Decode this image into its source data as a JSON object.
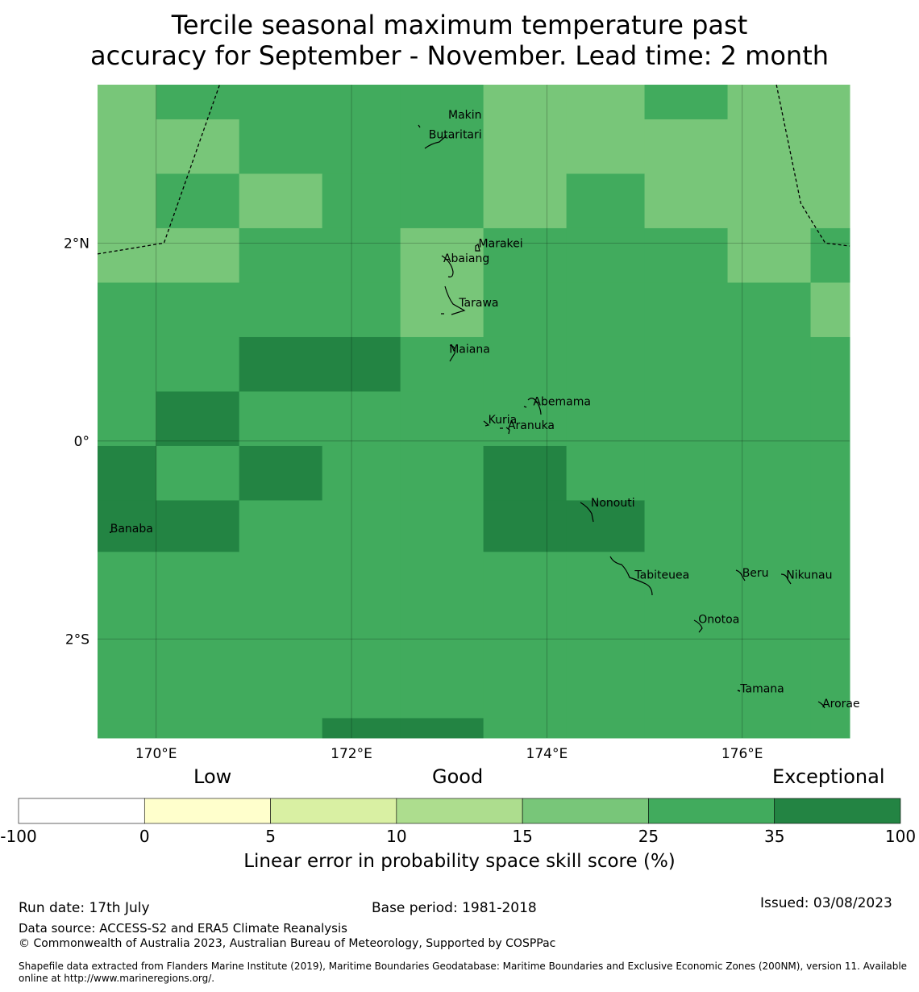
{
  "title": {
    "line1": "Tercile seasonal maximum temperature past",
    "line2": "accuracy for September - November. Lead time: 2 month"
  },
  "map": {
    "lon_range": [
      169.4,
      177.1
    ],
    "lat_range": [
      -3.0,
      3.6
    ],
    "x_ticks": [
      {
        "value": 170,
        "label": "170°E"
      },
      {
        "value": 172,
        "label": "172°E"
      },
      {
        "value": 174,
        "label": "174°E"
      },
      {
        "value": 176,
        "label": "176°E"
      }
    ],
    "y_ticks": [
      {
        "value": 2,
        "label": "2°N"
      },
      {
        "value": 0,
        "label": "0°"
      },
      {
        "value": -2,
        "label": "2°S"
      }
    ],
    "grid": true,
    "places": [
      {
        "name": "Makin",
        "lon": 172.99,
        "lat": 3.3
      },
      {
        "name": "Butaritari",
        "lon": 172.79,
        "lat": 3.1
      },
      {
        "name": "Marakei",
        "lon": 173.3,
        "lat": 2.0
      },
      {
        "name": "Abaiang",
        "lon": 172.94,
        "lat": 1.85
      },
      {
        "name": "Tarawa",
        "lon": 173.1,
        "lat": 1.4
      },
      {
        "name": "Maiana",
        "lon": 173.0,
        "lat": 0.93
      },
      {
        "name": "Abemama",
        "lon": 173.86,
        "lat": 0.4
      },
      {
        "name": "Kuria",
        "lon": 173.4,
        "lat": 0.22
      },
      {
        "name": "Aranuka",
        "lon": 173.6,
        "lat": 0.16
      },
      {
        "name": "Nonouti",
        "lon": 174.45,
        "lat": -0.62
      },
      {
        "name": "Banaba",
        "lon": 169.53,
        "lat": -0.88
      },
      {
        "name": "Tabiteuea",
        "lon": 174.9,
        "lat": -1.35
      },
      {
        "name": "Beru",
        "lon": 176.0,
        "lat": -1.33
      },
      {
        "name": "Nikunau",
        "lon": 176.45,
        "lat": -1.35
      },
      {
        "name": "Onotoa",
        "lon": 175.55,
        "lat": -1.8
      },
      {
        "name": "Tamana",
        "lon": 175.98,
        "lat": -2.5
      },
      {
        "name": "Arorae",
        "lon": 176.82,
        "lat": -2.65
      }
    ],
    "eez_boundaries": [
      [
        [
          169.4,
          1.89
        ],
        [
          170.08,
          2.0
        ],
        [
          170.65,
          3.6
        ]
      ],
      [
        [
          176.35,
          3.6
        ],
        [
          176.6,
          2.4
        ],
        [
          176.85,
          2.0
        ],
        [
          177.1,
          1.97
        ]
      ]
    ]
  },
  "chart_data": {
    "type": "heatmap",
    "value_label": "Linear error in probability space skill score (%)",
    "columns": [
      169.4,
      170.0,
      170.85,
      171.7,
      172.5,
      173.35,
      174.2,
      175.0,
      175.85,
      176.7,
      177.1
    ],
    "rows": [
      3.6,
      3.25,
      2.7,
      2.15,
      1.6,
      1.05,
      0.5,
      -0.05,
      -0.6,
      -1.12,
      -2.8,
      -3.0
    ],
    "category_colors": {
      "15-25": "#78c679",
      "25-35": "#41ab5d",
      "35-100": "#238443"
    },
    "categories": [
      [
        "15-25",
        "25-35",
        "25-35",
        "25-35",
        "25-35",
        "15-25",
        "15-25",
        "25-35",
        "15-25",
        "15-25"
      ],
      [
        "15-25",
        "15-25",
        "25-35",
        "25-35",
        "25-35",
        "15-25",
        "15-25",
        "15-25",
        "15-25",
        "15-25"
      ],
      [
        "15-25",
        "25-35",
        "15-25",
        "25-35",
        "25-35",
        "15-25",
        "25-35",
        "15-25",
        "15-25",
        "15-25"
      ],
      [
        "15-25",
        "15-25",
        "25-35",
        "25-35",
        "15-25",
        "25-35",
        "25-35",
        "25-35",
        "15-25",
        "25-35"
      ],
      [
        "25-35",
        "25-35",
        "25-35",
        "25-35",
        "15-25",
        "25-35",
        "25-35",
        "25-35",
        "25-35",
        "15-25"
      ],
      [
        "25-35",
        "25-35",
        "35-100",
        "35-100",
        "25-35",
        "25-35",
        "25-35",
        "25-35",
        "25-35",
        "25-35"
      ],
      [
        "25-35",
        "35-100",
        "25-35",
        "25-35",
        "25-35",
        "25-35",
        "25-35",
        "25-35",
        "25-35",
        "25-35"
      ],
      [
        "35-100",
        "25-35",
        "35-100",
        "25-35",
        "25-35",
        "35-100",
        "25-35",
        "25-35",
        "25-35",
        "25-35"
      ],
      [
        "35-100",
        "35-100",
        "25-35",
        "25-35",
        "25-35",
        "35-100",
        "35-100",
        "25-35",
        "25-35",
        "25-35"
      ],
      [
        "25-35",
        "25-35",
        "25-35",
        "25-35",
        "25-35",
        "25-35",
        "25-35",
        "25-35",
        "25-35",
        "25-35"
      ],
      [
        "25-35",
        "25-35",
        "25-35",
        "35-100",
        "35-100",
        "25-35",
        "25-35",
        "25-35",
        "25-35",
        "25-35"
      ]
    ]
  },
  "colorbar": {
    "bins": [
      {
        "from": -100,
        "to": 0,
        "color": "#ffffff"
      },
      {
        "from": 0,
        "to": 5,
        "color": "#ffffcc"
      },
      {
        "from": 5,
        "to": 10,
        "color": "#d9f0a3"
      },
      {
        "from": 10,
        "to": 15,
        "color": "#addd8e"
      },
      {
        "from": 15,
        "to": 25,
        "color": "#78c679"
      },
      {
        "from": 25,
        "to": 35,
        "color": "#41ab5d"
      },
      {
        "from": 35,
        "to": 100,
        "color": "#238443"
      }
    ],
    "tick_labels": [
      "-100",
      "0",
      "5",
      "10",
      "15",
      "25",
      "35",
      "100"
    ],
    "category_words": {
      "low": "Low",
      "good": "Good",
      "exceptional": "Exceptional"
    },
    "label": "Linear error in probability space skill score (%)"
  },
  "footer": {
    "run_date": "Run date: 17th July",
    "base_period": "Base period: 1981-2018",
    "issued": "Issued: 03/08/2023",
    "data_source": "Data source: ACCESS-S2 and ERA5 Climate Reanalysis",
    "copyright": "© Commonwealth of Australia 2023, Australian Bureau of Meteorology, Supported by COSPPac",
    "shapefile": "Shapefile data extracted from Flanders Marine Institute (2019), Maritime Boundaries Geodatabase: Maritime Boundaries and Exclusive Economic Zones (200NM), version 11. Available online at http://www.marineregions.org/."
  }
}
